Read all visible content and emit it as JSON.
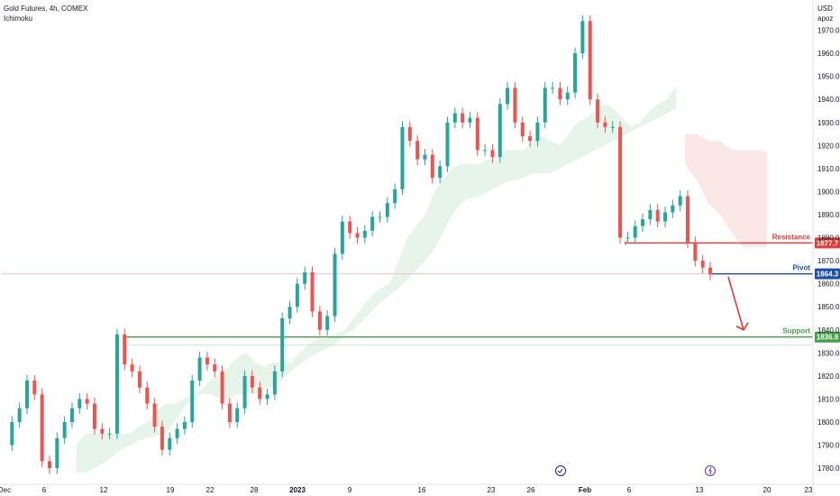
{
  "header": {
    "title": "Gold Futures, 4h, COMEX",
    "indicator": "Ichimoku"
  },
  "axis": {
    "currency": "USD",
    "mode": "apoz"
  },
  "chart_data": {
    "type": "line",
    "title": "Gold Futures, 4h, COMEX",
    "xlabel": "",
    "ylabel": "",
    "ylim": [
      1773,
      1980
    ],
    "grid": false,
    "y_ticks": [
      1780,
      1790,
      1800,
      1810,
      1820,
      1830,
      1840,
      1850,
      1860,
      1870,
      1880,
      1890,
      1900,
      1910,
      1920,
      1930,
      1940,
      1950,
      1960,
      1970
    ],
    "y_tick_labels": [
      "1780.0",
      "1790.0",
      "1800.0",
      "1810.0",
      "1820.0",
      "1830.0",
      "1840.0",
      "1850.0",
      "1860.0",
      "1870.0",
      "1880.0",
      "1890.0",
      "1900.0",
      "1910.0",
      "1920.0",
      "1930.0",
      "1940.0",
      "1950.0",
      "1960.0",
      "1970.0"
    ],
    "x_tick_labels": [
      "Dec",
      "6",
      "12",
      "19",
      "22",
      "28",
      "2023",
      "9",
      "16",
      "23",
      "26",
      "Feb",
      "6",
      "13",
      "20",
      "23"
    ],
    "levels": [
      {
        "name": "Resistance",
        "value": 1877.7,
        "label": "1877.7",
        "color": "#e53935"
      },
      {
        "name": "Pivot",
        "value": 1864.3,
        "label": "1864.3",
        "color": "#1e4fa8"
      },
      {
        "name": "Support",
        "value": 1836.9,
        "label": "1836.9",
        "color": "#43a047"
      }
    ],
    "series": [
      {
        "name": "Gold Futures",
        "values": [
          1790,
          1800,
          1806,
          1818,
          1812,
          1783,
          1780,
          1793,
          1800,
          1806,
          1810,
          1808,
          1797,
          1795,
          1795,
          1838,
          1825,
          1822,
          1815,
          1808,
          1798,
          1788,
          1793,
          1797,
          1800,
          1818,
          1828,
          1825,
          1822,
          1808,
          1800,
          1806,
          1820,
          1815,
          1810,
          1812,
          1822,
          1845,
          1850,
          1860,
          1865,
          1848,
          1840,
          1846,
          1873,
          1887,
          1882,
          1880,
          1883,
          1889,
          1889,
          1895,
          1901,
          1928,
          1922,
          1914,
          1916,
          1906,
          1911,
          1930,
          1934,
          1930,
          1932,
          1918,
          1918,
          1915,
          1938,
          1945,
          1930,
          1924,
          1922,
          1930,
          1945,
          1945,
          1940,
          1943,
          1960,
          1974,
          1940,
          1930,
          1928,
          1928,
          1880,
          1880,
          1885,
          1888,
          1892,
          1887,
          1891,
          1894,
          1898,
          1878,
          1870,
          1867,
          1864
        ]
      },
      {
        "name": "Ichimoku Cloud Top",
        "values": [
          null,
          null,
          null,
          null,
          null,
          null,
          null,
          null,
          1790,
          1795,
          1795,
          1795,
          1795,
          1795,
          1795,
          1798,
          1800,
          1805,
          1808,
          1808,
          1810,
          1812,
          1814,
          1818,
          1821,
          1824,
          1828,
          1830,
          1826,
          1824,
          1826,
          1826,
          1826,
          1830,
          1834,
          1836,
          1836,
          1838,
          1840,
          1845,
          1850,
          1855,
          1858,
          1860,
          1870,
          1880,
          1885,
          1890,
          1900,
          1905,
          1910,
          1912,
          1912,
          1912,
          1914,
          1914,
          1918,
          1918,
          1918,
          1922,
          1924,
          1922,
          1920,
          1925,
          1930,
          1932,
          1935,
          1938,
          1936,
          1932,
          1928,
          1930,
          1935,
          1938,
          1940,
          1946
        ]
      },
      {
        "name": "Ichimoku Cloud Bottom",
        "values": [
          null,
          null,
          null,
          null,
          null,
          null,
          null,
          null,
          1778,
          1778,
          1780,
          1782,
          1785,
          1788,
          1790,
          1792,
          1793,
          1794,
          1795,
          1800,
          1806,
          1810,
          1812,
          1812,
          1810,
          1810,
          1812,
          1812,
          1812,
          1815,
          1815,
          1818,
          1822,
          1825,
          1828,
          1830,
          1832,
          1834,
          1838,
          1840,
          1844,
          1848,
          1852,
          1855,
          1858,
          1862,
          1866,
          1870,
          1875,
          1882,
          1890,
          1895,
          1897,
          1898,
          1900,
          1902,
          1904,
          1905,
          1906,
          1908,
          1908,
          1908,
          1910,
          1912,
          1914,
          1916,
          1918,
          1920,
          1922,
          1924,
          1926,
          1928,
          1930,
          1932,
          1934,
          1936
        ]
      },
      {
        "name": "Bearish Cloud Top",
        "values": [
          1925,
          1925,
          1922,
          1922,
          1918,
          1918,
          1918,
          1917
        ]
      },
      {
        "name": "Bearish Cloud Bottom",
        "values": [
          1912,
          1905,
          1895,
          1890,
          1882,
          1876,
          1876,
          1876
        ]
      }
    ]
  }
}
